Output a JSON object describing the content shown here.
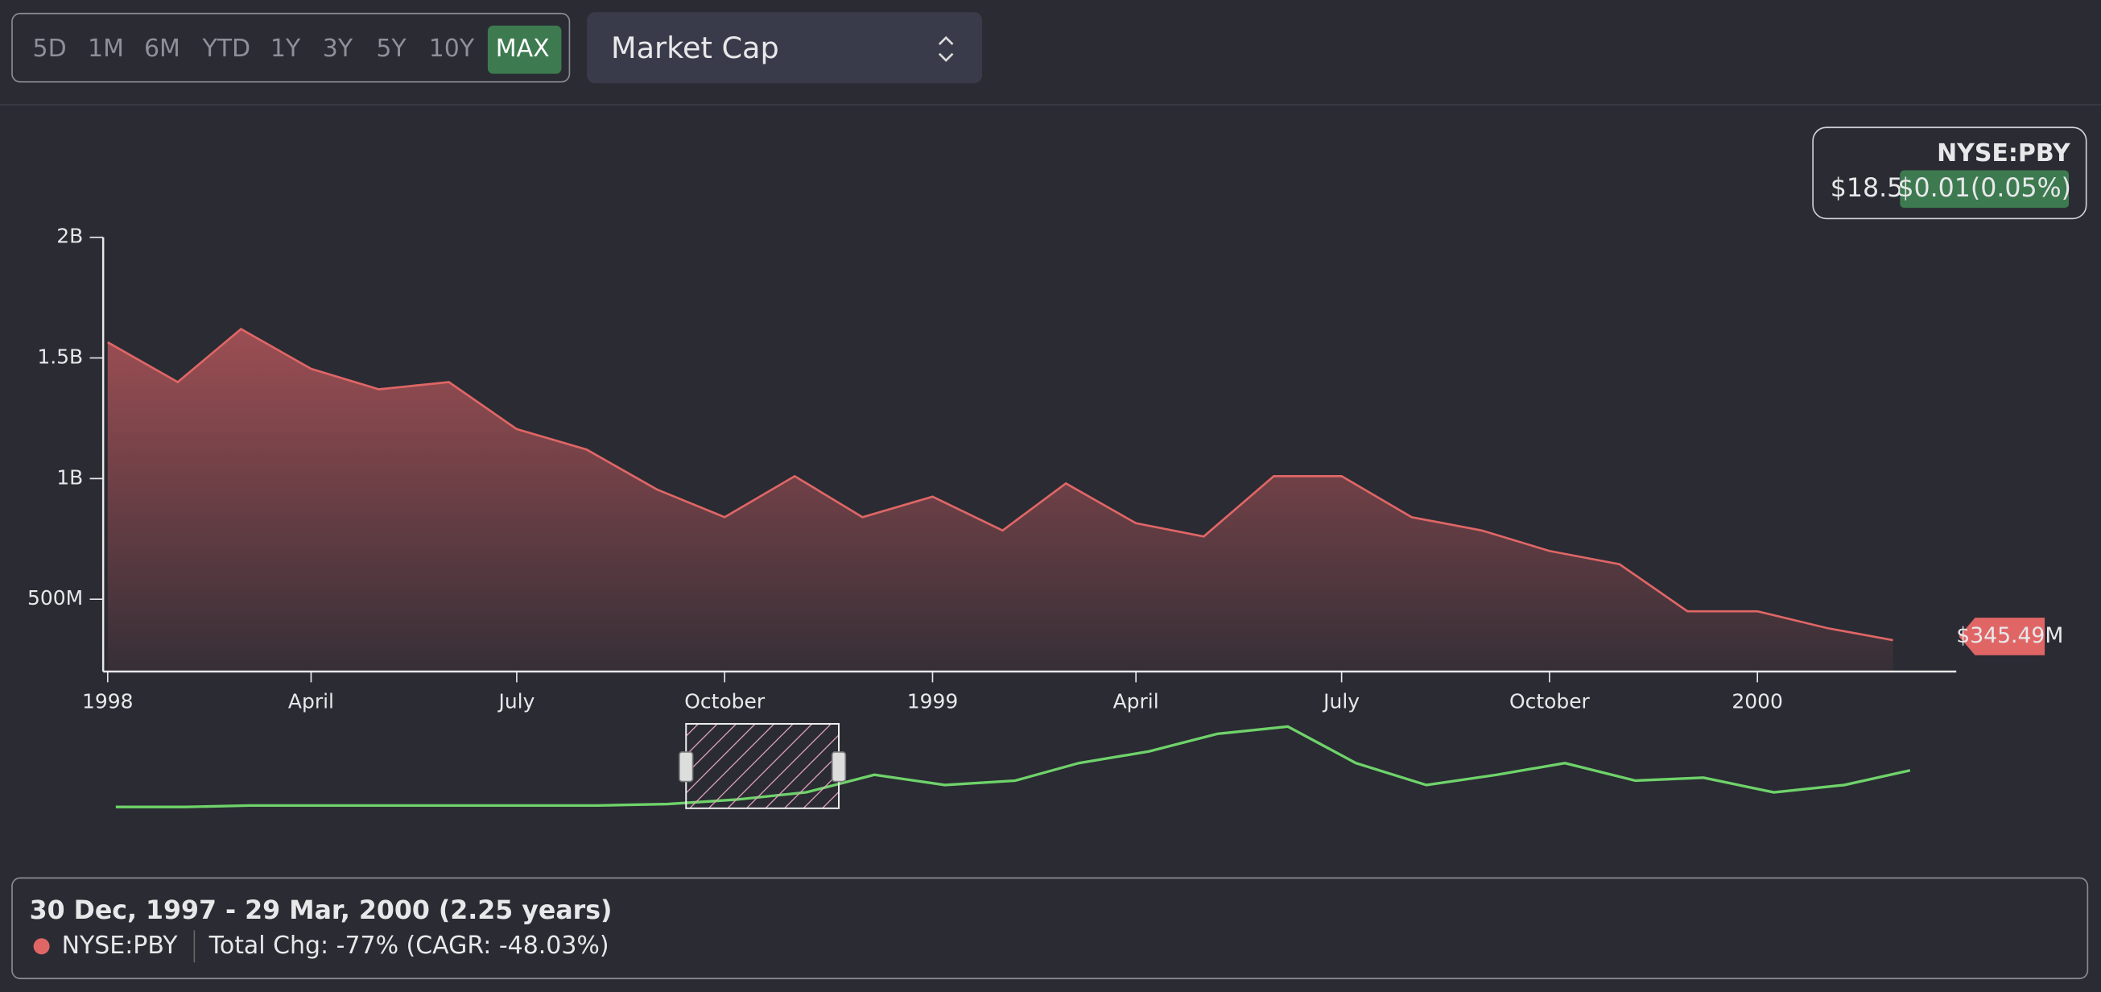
{
  "controls": {
    "ranges": [
      "5D",
      "1M",
      "6M",
      "YTD",
      "1Y",
      "3Y",
      "5Y",
      "10Y",
      "MAX"
    ],
    "active_range": 8,
    "metric": "Market Cap"
  },
  "legend": {
    "ticker": "NYSE:PBY",
    "price": "$18.5",
    "change": "$0.01(0.05%)"
  },
  "chart_data": {
    "type": "area",
    "color": "#e06666",
    "x": [
      "1998-01",
      "1998-02",
      "1998-03",
      "1998-04",
      "1998-05",
      "1998-06",
      "1998-07",
      "1998-08",
      "1998-09",
      "1998-10",
      "1998-11",
      "1998-12",
      "1999-01",
      "1999-02",
      "1999-03",
      "1999-04",
      "1999-05",
      "1999-06",
      "1999-07",
      "1999-08",
      "1999-09",
      "1999-10",
      "1999-11",
      "1999-12",
      "2000-01",
      "2000-02",
      "2000-03"
    ],
    "values": [
      1565000000,
      1400000000,
      1620000000,
      1455000000,
      1370000000,
      1400000000,
      1205000000,
      1120000000,
      955000000,
      840000000,
      1010000000,
      840000000,
      925000000,
      785000000,
      980000000,
      815000000,
      760000000,
      1010000000,
      1010000000,
      840000000,
      785000000,
      700000000,
      645000000,
      450000000,
      450000000,
      380000000,
      330000000
    ],
    "xlim": [
      "1997-12-30",
      "2000-03-29"
    ],
    "xticks": [
      {
        "value": "1998-01",
        "label": "1998"
      },
      {
        "value": "1998-04",
        "label": "April"
      },
      {
        "value": "1998-07",
        "label": "July"
      },
      {
        "value": "1998-10",
        "label": "October"
      },
      {
        "value": "1999-01",
        "label": "1999"
      },
      {
        "value": "1999-04",
        "label": "April"
      },
      {
        "value": "1999-07",
        "label": "July"
      },
      {
        "value": "1999-10",
        "label": "October"
      },
      {
        "value": "2000-01",
        "label": "2000"
      }
    ],
    "ylim": [
      200000000,
      2000000000
    ],
    "yticks": [
      {
        "value": 500000000,
        "label": "500M"
      },
      {
        "value": 1000000000,
        "label": "1B"
      },
      {
        "value": 1500000000,
        "label": "1.5B"
      },
      {
        "value": 2000000000,
        "label": "2B"
      }
    ],
    "current_value": {
      "value": 345490000,
      "label": "$345.49M"
    },
    "navigator": {
      "color": "#6fd36a",
      "values": [
        0,
        0,
        1,
        1,
        1,
        1,
        1,
        1,
        2,
        5,
        10,
        22,
        15,
        18,
        30,
        38,
        50,
        55,
        30,
        15,
        22,
        30,
        18,
        20,
        10,
        15,
        25
      ]
    }
  },
  "footer": {
    "period": "30 Dec, 1997 - 29 Mar, 2000 (2.25 years)",
    "ticker": "NYSE:PBY",
    "total_change": "Total Chg: -77% (CAGR: -48.03%)"
  }
}
